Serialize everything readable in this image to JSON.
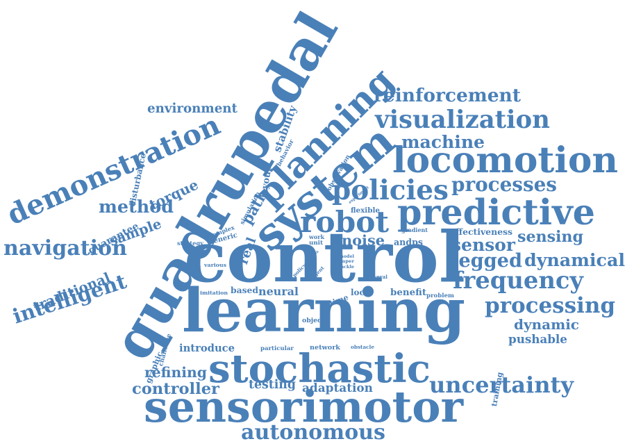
{
  "colors": {
    "ink": "#4a80b8",
    "background": "#ffffff"
  },
  "words": [
    {
      "id": "quadrupedal",
      "text": "quadrupedal"
    },
    {
      "id": "control",
      "text": "control"
    },
    {
      "id": "learning",
      "text": "learning"
    },
    {
      "id": "system",
      "text": "system"
    },
    {
      "id": "sensorimotor",
      "text": "sensorimotor"
    },
    {
      "id": "stochastic",
      "text": "stochastic"
    },
    {
      "id": "predictive",
      "text": "predictive"
    },
    {
      "id": "locomotion",
      "text": "locomotion"
    },
    {
      "id": "planning",
      "text": "planning"
    },
    {
      "id": "demonstration",
      "text": "demonstration"
    },
    {
      "id": "visualization",
      "text": "visualization"
    },
    {
      "id": "policies",
      "text": "policies"
    },
    {
      "id": "uncertainty",
      "text": "uncertainty"
    },
    {
      "id": "frequency",
      "text": "frequency"
    },
    {
      "id": "processing",
      "text": "processing"
    },
    {
      "id": "robot",
      "text": "robot"
    },
    {
      "id": "reinforcement",
      "text": "reinforcement"
    },
    {
      "id": "navigation",
      "text": "navigation"
    },
    {
      "id": "intelligent",
      "text": "intelligent"
    },
    {
      "id": "autonomous",
      "text": "autonomous"
    },
    {
      "id": "legged",
      "text": "legged"
    },
    {
      "id": "dynamical",
      "text": "dynamical"
    },
    {
      "id": "processes",
      "text": "processes"
    },
    {
      "id": "machine",
      "text": "machine"
    },
    {
      "id": "controller",
      "text": "controller"
    },
    {
      "id": "sensor",
      "text": "sensor"
    },
    {
      "id": "method",
      "text": "method"
    },
    {
      "id": "sample",
      "text": "sample"
    },
    {
      "id": "traditional",
      "text": "traditional"
    },
    {
      "id": "environment",
      "text": "environment"
    },
    {
      "id": "noise",
      "text": "noise"
    },
    {
      "id": "sensing",
      "text": "sensing"
    },
    {
      "id": "refining",
      "text": "refining"
    },
    {
      "id": "testing",
      "text": "testing"
    },
    {
      "id": "adaptation",
      "text": "adaptation"
    },
    {
      "id": "neural",
      "text": "neural"
    },
    {
      "id": "based",
      "text": "based"
    },
    {
      "id": "dynamic",
      "text": "dynamic"
    },
    {
      "id": "pushable",
      "text": "pushable"
    },
    {
      "id": "introduce",
      "text": "introduce"
    },
    {
      "id": "graphic",
      "text": "graphic"
    },
    {
      "id": "training",
      "text": "training"
    },
    {
      "id": "torque",
      "text": "torque"
    },
    {
      "id": "stability",
      "text": "stability"
    },
    {
      "id": "layout",
      "text": "layout"
    },
    {
      "id": "real",
      "text": "real"
    },
    {
      "id": "path",
      "text": "path"
    },
    {
      "id": "guarantee",
      "text": "guarantee"
    },
    {
      "id": "benefit",
      "text": "benefit"
    },
    {
      "id": "time",
      "text": "time"
    },
    {
      "id": "local",
      "text": "local"
    },
    {
      "id": "andps",
      "text": "andps"
    },
    {
      "id": "effectiveness",
      "text": "effectiveness"
    },
    {
      "id": "disturbance",
      "text": "disturbance"
    },
    {
      "id": "behavior",
      "text": "behavior"
    },
    {
      "id": "observation",
      "text": "observation"
    },
    {
      "id": "experiment",
      "text": "experiment"
    },
    {
      "id": "simulation",
      "text": "simulation"
    },
    {
      "id": "flexible",
      "text": "flexible"
    },
    {
      "id": "gradient",
      "text": "gradient"
    },
    {
      "id": "complex",
      "text": "complex"
    },
    {
      "id": "generic",
      "text": "generic"
    },
    {
      "id": "strategy",
      "text": "strategy"
    },
    {
      "id": "various",
      "text": "various"
    },
    {
      "id": "imitation",
      "text": "imitation"
    },
    {
      "id": "unit",
      "text": "unit"
    },
    {
      "id": "work",
      "text": "work"
    },
    {
      "id": "task",
      "text": "task"
    },
    {
      "id": "policy",
      "text": "policy"
    },
    {
      "id": "agent",
      "text": "agent"
    },
    {
      "id": "model",
      "text": "model"
    },
    {
      "id": "paper",
      "text": "paper"
    },
    {
      "id": "tackle",
      "text": "tackle"
    },
    {
      "id": "several",
      "text": "several"
    },
    {
      "id": "problem",
      "text": "problem"
    },
    {
      "id": "object",
      "text": "object"
    },
    {
      "id": "network",
      "text": "network"
    },
    {
      "id": "obstacle",
      "text": "obstacle"
    },
    {
      "id": "particular",
      "text": "particular"
    },
    {
      "id": "challenge",
      "text": "challenge"
    }
  ]
}
